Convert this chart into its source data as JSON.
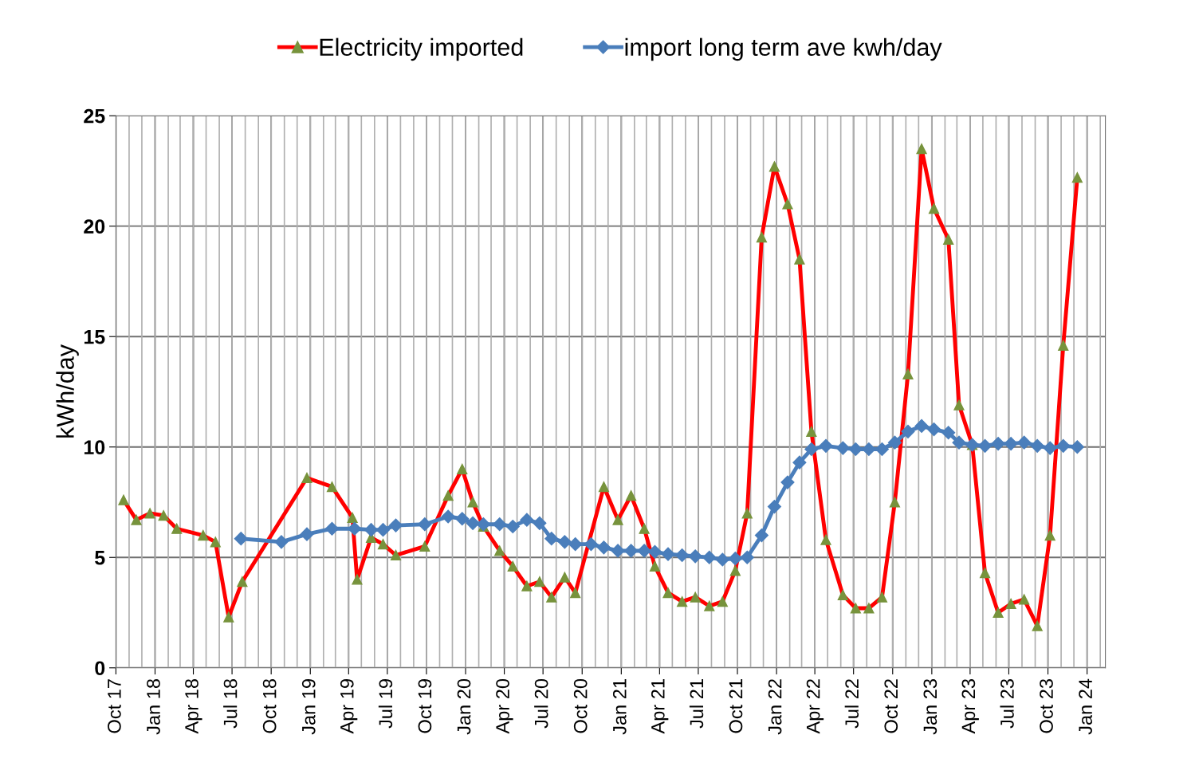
{
  "chart_data": {
    "type": "line",
    "ylabel": "kWh/day",
    "xlim": [
      "2017-10-01",
      "2024-02-13"
    ],
    "ylim": [
      0,
      25
    ],
    "yticks": [
      0,
      5,
      10,
      15,
      20,
      25
    ],
    "xticks": [
      {
        "value": "2017-10-01",
        "label": "Oct 17"
      },
      {
        "value": "2018-01-01",
        "label": "Jan 18"
      },
      {
        "value": "2018-04-01",
        "label": "Apr 18"
      },
      {
        "value": "2018-07-01",
        "label": "Jul 18"
      },
      {
        "value": "2018-10-01",
        "label": "Oct 18"
      },
      {
        "value": "2019-01-01",
        "label": "Jan 19"
      },
      {
        "value": "2019-04-01",
        "label": "Apr 19"
      },
      {
        "value": "2019-07-01",
        "label": "Jul 19"
      },
      {
        "value": "2019-10-01",
        "label": "Oct 19"
      },
      {
        "value": "2020-01-01",
        "label": "Jan 20"
      },
      {
        "value": "2020-04-01",
        "label": "Apr 20"
      },
      {
        "value": "2020-07-01",
        "label": "Jul 20"
      },
      {
        "value": "2020-10-01",
        "label": "Oct 20"
      },
      {
        "value": "2021-01-01",
        "label": "Jan 21"
      },
      {
        "value": "2021-04-01",
        "label": "Apr 21"
      },
      {
        "value": "2021-07-01",
        "label": "Jul 21"
      },
      {
        "value": "2021-10-01",
        "label": "Oct 21"
      },
      {
        "value": "2022-01-01",
        "label": "Jan 22"
      },
      {
        "value": "2022-04-01",
        "label": "Apr 22"
      },
      {
        "value": "2022-07-01",
        "label": "Jul 22"
      },
      {
        "value": "2022-10-01",
        "label": "Oct 22"
      },
      {
        "value": "2023-01-01",
        "label": "Jan 23"
      },
      {
        "value": "2023-04-01",
        "label": "Apr 23"
      },
      {
        "value": "2023-07-01",
        "label": "Jul 23"
      },
      {
        "value": "2023-10-01",
        "label": "Oct 23"
      },
      {
        "value": "2024-01-01",
        "label": "Jan 24"
      }
    ],
    "grid": true,
    "legend": "top",
    "series": [
      {
        "name": "Electricity imported",
        "color": "#ff0000",
        "marker": "triangle",
        "line_style": "solid",
        "x": [
          "2017-10-19",
          "2017-11-18",
          "2017-12-20",
          "2018-01-21",
          "2018-02-21",
          "2018-04-24",
          "2018-05-23",
          "2018-06-23",
          "2018-07-25",
          "2018-12-24",
          "2019-02-21",
          "2019-04-10",
          "2019-04-21",
          "2019-05-24",
          "2019-06-21",
          "2019-07-21",
          "2019-09-27",
          "2019-11-21",
          "2019-12-24",
          "2020-01-18",
          "2020-02-12",
          "2020-03-21",
          "2020-04-21",
          "2020-05-24",
          "2020-06-23",
          "2020-07-21",
          "2020-08-21",
          "2020-09-15",
          "2020-11-21",
          "2020-12-24",
          "2021-01-24",
          "2021-02-24",
          "2021-03-21",
          "2021-04-21",
          "2021-05-24",
          "2021-06-24",
          "2021-07-27",
          "2021-08-27",
          "2021-09-26",
          "2021-10-24",
          "2021-11-27",
          "2021-12-27",
          "2022-01-27",
          "2022-02-24",
          "2022-03-24",
          "2022-04-27",
          "2022-06-06",
          "2022-07-06",
          "2022-08-06",
          "2022-09-06",
          "2022-10-06",
          "2022-11-06",
          "2022-12-08",
          "2023-01-06",
          "2023-02-09",
          "2023-03-06",
          "2023-04-06",
          "2023-05-06",
          "2023-06-06",
          "2023-07-06",
          "2023-08-06",
          "2023-09-06",
          "2023-10-06",
          "2023-11-06",
          "2023-12-09"
        ],
        "values": [
          7.6,
          6.7,
          7.0,
          6.9,
          6.3,
          6.0,
          5.7,
          2.3,
          3.9,
          8.6,
          8.2,
          6.8,
          4.0,
          5.9,
          5.6,
          5.1,
          5.5,
          7.8,
          9.0,
          7.5,
          6.4,
          5.3,
          4.6,
          3.7,
          3.9,
          3.2,
          4.1,
          3.4,
          8.2,
          6.7,
          7.8,
          6.3,
          4.6,
          3.4,
          3.0,
          3.2,
          2.8,
          3.0,
          4.4,
          7.0,
          19.5,
          22.7,
          21.0,
          18.5,
          10.7,
          5.8,
          3.3,
          2.7,
          2.7,
          3.2,
          7.5,
          13.3,
          23.5,
          20.8,
          19.4,
          11.9,
          10.1,
          4.3,
          2.5,
          2.9,
          3.1,
          1.9,
          6.0,
          14.6,
          22.2
        ]
      },
      {
        "name": "import long term ave kwh/day",
        "color": "#4a7ebb",
        "marker": "diamond",
        "line_style": "solid",
        "x": [
          "2018-07-22",
          "2018-10-25",
          "2018-12-24",
          "2019-02-21",
          "2019-04-15",
          "2019-05-24",
          "2019-06-21",
          "2019-07-21",
          "2019-09-27",
          "2019-11-21",
          "2019-12-24",
          "2020-01-18",
          "2020-02-12",
          "2020-03-21",
          "2020-04-21",
          "2020-05-24",
          "2020-06-23",
          "2020-07-21",
          "2020-08-21",
          "2020-09-15",
          "2020-10-22",
          "2020-11-21",
          "2020-12-24",
          "2021-01-24",
          "2021-02-24",
          "2021-03-21",
          "2021-04-21",
          "2021-05-24",
          "2021-06-24",
          "2021-07-27",
          "2021-08-27",
          "2021-09-26",
          "2021-10-24",
          "2021-11-27",
          "2021-12-27",
          "2022-01-27",
          "2022-02-24",
          "2022-03-24",
          "2022-04-27",
          "2022-06-06",
          "2022-07-06",
          "2022-08-06",
          "2022-09-06",
          "2022-10-06",
          "2022-11-06",
          "2022-12-08",
          "2023-01-06",
          "2023-02-09",
          "2023-03-06",
          "2023-04-06",
          "2023-05-06",
          "2023-06-06",
          "2023-07-06",
          "2023-08-06",
          "2023-09-06",
          "2023-10-06",
          "2023-11-06",
          "2023-12-09"
        ],
        "values": [
          5.85,
          5.7,
          6.05,
          6.3,
          6.3,
          6.25,
          6.25,
          6.45,
          6.5,
          6.85,
          6.75,
          6.55,
          6.5,
          6.5,
          6.4,
          6.7,
          6.55,
          5.85,
          5.7,
          5.6,
          5.6,
          5.45,
          5.3,
          5.3,
          5.3,
          5.25,
          5.15,
          5.1,
          5.05,
          5.0,
          4.9,
          4.95,
          5.0,
          6.0,
          7.3,
          8.4,
          9.3,
          9.9,
          10.05,
          9.95,
          9.9,
          9.9,
          9.9,
          10.2,
          10.7,
          10.95,
          10.8,
          10.65,
          10.2,
          10.1,
          10.05,
          10.15,
          10.15,
          10.2,
          10.05,
          9.95,
          10.05,
          10.0
        ]
      }
    ]
  }
}
